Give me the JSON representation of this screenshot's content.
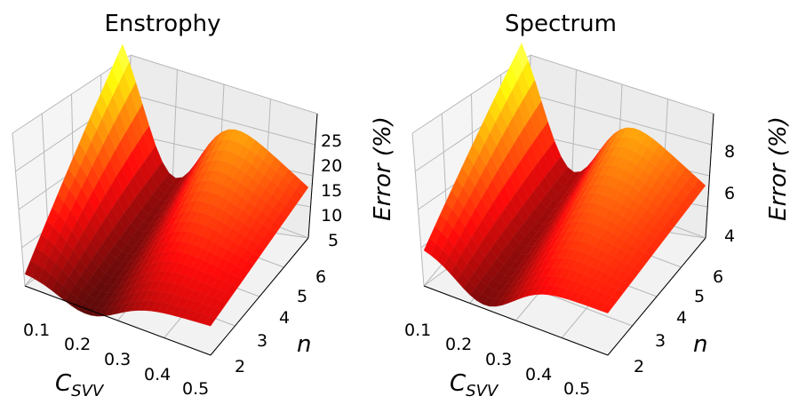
{
  "figure": {
    "colormap": "hot",
    "colors": {
      "background": "#ffffff",
      "pane": "#f2f2f2",
      "grid": "#b8b8b8"
    }
  },
  "chart_data": [
    {
      "type": "surface",
      "title": "Enstrophy",
      "xlabel": "C",
      "xlabel_sub": "SVV",
      "ylabel": "n",
      "zlabel": "Error (%)",
      "x_ticks": [
        "0.1",
        "0.2",
        "0.3",
        "0.4",
        "0.5"
      ],
      "y_ticks": [
        "2",
        "3",
        "4",
        "5",
        "6"
      ],
      "z_ticks": [
        "5",
        "10",
        "15",
        "20",
        "25"
      ],
      "xlim": [
        0.1,
        0.5
      ],
      "ylim": [
        2,
        6
      ],
      "zlim": [
        5,
        29
      ],
      "grid": true,
      "x_range": [
        0.1,
        0.5
      ],
      "y_range": [
        2,
        6
      ],
      "z": {
        "z_at_min_cx_max_n": 29,
        "z_at_min_cx_min_n": 7.2,
        "z_at_max_cx_max_n": 13,
        "z_at_max_cx_min_n": 9.6,
        "valley_min": 3.5
      }
    },
    {
      "type": "surface",
      "title": "Spectrum",
      "xlabel": "C",
      "xlabel_sub": "SVV",
      "ylabel": "n",
      "zlabel": "Error (%)",
      "x_ticks": [
        "0.1",
        "0.2",
        "0.3",
        "0.4",
        "0.5"
      ],
      "y_ticks": [
        "2",
        "3",
        "4",
        "5",
        "6"
      ],
      "z_ticks": [
        "4",
        "6",
        "8"
      ],
      "xlim": [
        0.1,
        0.5
      ],
      "ylim": [
        2,
        6
      ],
      "zlim": [
        3.6,
        9.4
      ],
      "grid": true,
      "x_range": [
        0.1,
        0.5
      ],
      "y_range": [
        2,
        6
      ],
      "z": {
        "z_at_min_cx_max_n": 9.4,
        "z_at_min_cx_min_n": 5.1,
        "z_at_max_cx_max_n": 5.6,
        "z_at_max_cx_min_n": 5.2,
        "valley_min": 3.5
      }
    }
  ]
}
